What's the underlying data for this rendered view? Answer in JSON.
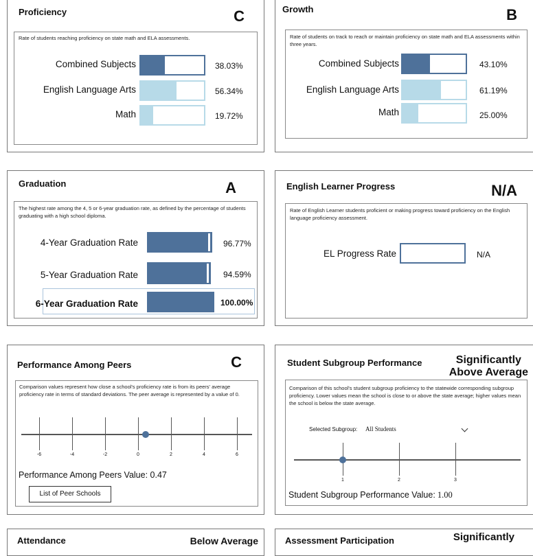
{
  "proficiency": {
    "title": "Proficiency",
    "grade": "C",
    "description": "Rate of students reaching proficiency on state math and ELA assessments.",
    "rows": [
      {
        "label": "Combined Subjects",
        "value": "38.03%",
        "fraction": 0.3803,
        "style": "dark"
      },
      {
        "label": "English Language Arts",
        "value": "56.34%",
        "fraction": 0.5634,
        "style": "light"
      },
      {
        "label": "Math",
        "value": "19.72%",
        "fraction": 0.1972,
        "style": "light"
      }
    ]
  },
  "growth": {
    "title": "Growth",
    "grade": "B",
    "description": "Rate of students on track to reach or maintain proficiency on state math and ELA assessments within three years.",
    "rows": [
      {
        "label": "Combined Subjects",
        "value": "43.10%",
        "fraction": 0.431,
        "style": "dark"
      },
      {
        "label": "English Language Arts",
        "value": "61.19%",
        "fraction": 0.6119,
        "style": "light"
      },
      {
        "label": "Math",
        "value": "25.00%",
        "fraction": 0.25,
        "style": "light"
      }
    ]
  },
  "graduation": {
    "title": "Graduation",
    "grade": "A",
    "description": "The highest rate among the 4, 5 or 6-year graduation rate, as defined by the percentage of students graduating with a high school diploma.",
    "rows": [
      {
        "label": "4-Year Graduation Rate",
        "value": "96.77%",
        "fraction": 0.9677
      },
      {
        "label": "5-Year Graduation Rate",
        "value": "94.59%",
        "fraction": 0.9459
      },
      {
        "label": "6-Year Graduation Rate",
        "value": "100.00%",
        "fraction": 1.0
      }
    ]
  },
  "el_progress": {
    "title": "English Learner Progress",
    "grade": "N/A",
    "description": "Rate of English Learner students proficient or making progress toward proficiency on the English language proficiency assessment.",
    "label": "EL Progress Rate",
    "value": "N/A"
  },
  "peers": {
    "title": "Performance Among Peers",
    "grade": "C",
    "description": "Comparison values represent how close a school's proficiency rate is from its peers' average proficiency rate in terms of standard deviations. The peer average is represented by a value of 0.",
    "ticks": [
      "-6",
      "-4",
      "-2",
      "0",
      "2",
      "4",
      "6"
    ],
    "marker_value": 0.47,
    "value_label": "Performance Among Peers Value:",
    "value": "0.47",
    "button_label": "List of Peer Schools"
  },
  "subgroup": {
    "title": "Student Subgroup Performance",
    "grade_line1": "Significantly",
    "grade_line2": "Above Average",
    "description": "Comparison of this school's student subgroup proficiency to the statewide corresponding subgroup proficiency. Lower values mean the school is close to or above the state average; higher values mean the school is below the state average.",
    "select_label": "Selected Subgroup:",
    "select_value": "All Students",
    "ticks": [
      "1",
      "2",
      "3"
    ],
    "marker_value": 1.0,
    "value_label": "Student Subgroup Performance Value:",
    "value": "1.00"
  },
  "attendance": {
    "title": "Attendance",
    "grade": "Below Average"
  },
  "assessment": {
    "title": "Assessment Participation",
    "grade": "Significantly"
  }
}
